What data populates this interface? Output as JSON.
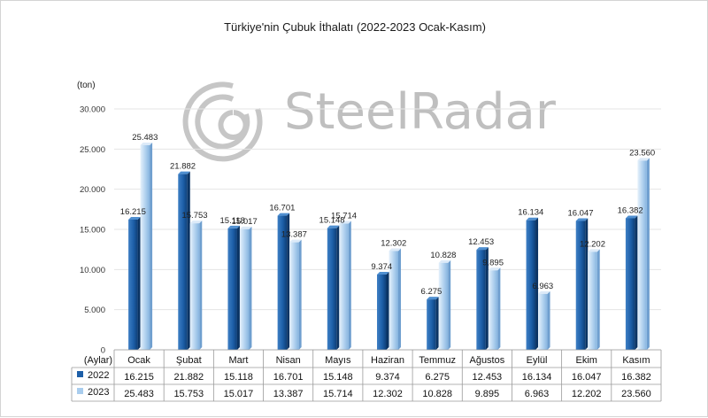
{
  "chart_data": {
    "type": "bar",
    "title": "Türkiye'nin Çubuk İthalatı (2022-2023 Ocak-Kasım)",
    "unit_label": "(ton)",
    "table_header": "(Aylar)",
    "categories": [
      "Ocak",
      "Şubat",
      "Mart",
      "Nisan",
      "Mayıs",
      "Haziran",
      "Temmuz",
      "Ağustos",
      "Eylül",
      "Ekim",
      "Kasım"
    ],
    "series": [
      {
        "name": "2022",
        "color": "#1d5fa8",
        "values": [
          16215,
          21882,
          15118,
          16701,
          15148,
          9374,
          6275,
          12453,
          16134,
          16047,
          16382
        ],
        "labels": [
          "16.215",
          "21.882",
          "15.118",
          "16.701",
          "15.148",
          "9.374",
          "6.275",
          "12.453",
          "16.134",
          "16.047",
          "16.382"
        ]
      },
      {
        "name": "2023",
        "color": "#a9cdee",
        "values": [
          25483,
          15753,
          15017,
          13387,
          15714,
          12302,
          10828,
          9895,
          6963,
          12202,
          23560
        ],
        "labels": [
          "25.483",
          "15.753",
          "15.017",
          "13.387",
          "15.714",
          "12.302",
          "10.828",
          "9.895",
          "6.963",
          "12.202",
          "23.560"
        ]
      }
    ],
    "ylim": [
      0,
      30000
    ],
    "yticks": [
      0,
      5000,
      10000,
      15000,
      20000,
      25000,
      30000
    ],
    "ytick_labels": [
      "0",
      "5.000",
      "10.000",
      "15.000",
      "20.000",
      "25.000",
      "30.000"
    ],
    "grid": true,
    "legend": "data-table"
  },
  "watermark": {
    "text": "SteelRadar",
    "icon": "steelradar-logo-icon"
  }
}
